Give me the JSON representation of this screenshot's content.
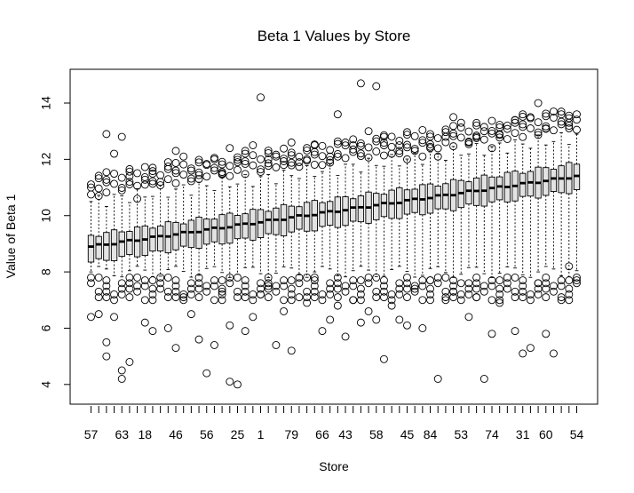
{
  "chart_data": {
    "type": "box",
    "title": "Beta 1 Values by Store",
    "xlabel": "Store",
    "ylabel": "Value of Beta 1",
    "ylim": [
      3.3,
      15.2
    ],
    "yticks": [
      4,
      6,
      8,
      10,
      12,
      14
    ],
    "num_boxes": 64,
    "x_tick_labels_shown": [
      "57",
      "63",
      "18",
      "46",
      "56",
      "25",
      "1",
      "79",
      "66",
      "43",
      "58",
      "45",
      "84",
      "53",
      "74",
      "31",
      "60",
      "54"
    ],
    "median_trend": {
      "start": 8.9,
      "end": 11.4
    },
    "q1_trend": {
      "start": 8.35,
      "end": 10.9
    },
    "q3_trend": {
      "start": 9.3,
      "end": 11.85
    },
    "lower_whisker_typical": 8.0,
    "upper_whisker_typical": {
      "start": 10.5,
      "end": 12.8
    },
    "outliers_high": [
      [
        0,
        11.0
      ],
      [
        1,
        10.7
      ],
      [
        2,
        12.9
      ],
      [
        3,
        12.2
      ],
      [
        4,
        12.8
      ],
      [
        5,
        11.4
      ],
      [
        6,
        10.6
      ],
      [
        7,
        11.1
      ],
      [
        8,
        11.7
      ],
      [
        9,
        11.2
      ],
      [
        10,
        11.9
      ],
      [
        11,
        12.3
      ],
      [
        12,
        12.1
      ],
      [
        13,
        11.6
      ],
      [
        14,
        11.3
      ],
      [
        15,
        11.8
      ],
      [
        16,
        12.0
      ],
      [
        17,
        11.5
      ],
      [
        18,
        12.4
      ],
      [
        19,
        11.9
      ],
      [
        20,
        12.3
      ],
      [
        21,
        12.5
      ],
      [
        22,
        14.2
      ],
      [
        23,
        12.0
      ],
      [
        24,
        12.1
      ],
      [
        25,
        11.8
      ],
      [
        26,
        12.6
      ],
      [
        27,
        11.9
      ],
      [
        28,
        12.0
      ],
      [
        29,
        12.5
      ],
      [
        30,
        11.8
      ],
      [
        31,
        12.1
      ],
      [
        32,
        13.6
      ],
      [
        33,
        12.6
      ],
      [
        34,
        12.5
      ],
      [
        35,
        14.7
      ],
      [
        36,
        13.0
      ],
      [
        37,
        14.6
      ],
      [
        38,
        12.8
      ],
      [
        39,
        12.2
      ],
      [
        40,
        12.5
      ],
      [
        41,
        12.0
      ],
      [
        42,
        12.3
      ],
      [
        43,
        12.1
      ],
      [
        44,
        12.4
      ],
      [
        45,
        12.1
      ],
      [
        46,
        12.8
      ],
      [
        47,
        13.5
      ],
      [
        48,
        13.3
      ],
      [
        49,
        12.6
      ],
      [
        50,
        12.8
      ],
      [
        51,
        13.0
      ],
      [
        52,
        12.4
      ],
      [
        53,
        12.9
      ],
      [
        54,
        13.2
      ],
      [
        55,
        13.4
      ],
      [
        56,
        13.6
      ],
      [
        57,
        13.5
      ],
      [
        58,
        14.0
      ],
      [
        59,
        13.1
      ],
      [
        60,
        13.7
      ],
      [
        61,
        13.6
      ],
      [
        62,
        13.3
      ],
      [
        63,
        13.6
      ]
    ],
    "outliers_low": [
      [
        0,
        6.4
      ],
      [
        1,
        6.5
      ],
      [
        2,
        5.5
      ],
      [
        2,
        5.0
      ],
      [
        3,
        6.4
      ],
      [
        4,
        4.2
      ],
      [
        4,
        4.5
      ],
      [
        5,
        4.8
      ],
      [
        6,
        7.8
      ],
      [
        7,
        6.2
      ],
      [
        8,
        5.9
      ],
      [
        9,
        7.4
      ],
      [
        10,
        6.0
      ],
      [
        11,
        5.3
      ],
      [
        12,
        7.1
      ],
      [
        13,
        6.5
      ],
      [
        14,
        5.6
      ],
      [
        15,
        4.4
      ],
      [
        16,
        5.4
      ],
      [
        17,
        7.3
      ],
      [
        18,
        4.1
      ],
      [
        18,
        6.1
      ],
      [
        19,
        4.0
      ],
      [
        20,
        5.9
      ],
      [
        21,
        6.4
      ],
      [
        22,
        7.2
      ],
      [
        23,
        7.5
      ],
      [
        24,
        5.4
      ],
      [
        25,
        6.6
      ],
      [
        26,
        5.2
      ],
      [
        27,
        7.1
      ],
      [
        28,
        6.9
      ],
      [
        29,
        7.8
      ],
      [
        30,
        5.9
      ],
      [
        31,
        6.3
      ],
      [
        32,
        6.8
      ],
      [
        33,
        5.7
      ],
      [
        34,
        7.0
      ],
      [
        35,
        6.2
      ],
      [
        36,
        6.6
      ],
      [
        37,
        6.3
      ],
      [
        38,
        4.9
      ],
      [
        39,
        6.8
      ],
      [
        40,
        6.3
      ],
      [
        41,
        6.1
      ],
      [
        42,
        7.4
      ],
      [
        43,
        6.0
      ],
      [
        44,
        7.7
      ],
      [
        45,
        4.2
      ],
      [
        46,
        7.0
      ],
      [
        47,
        7.3
      ],
      [
        48,
        7.6
      ],
      [
        49,
        6.4
      ],
      [
        50,
        7.1
      ],
      [
        51,
        4.2
      ],
      [
        52,
        5.8
      ],
      [
        53,
        6.9
      ],
      [
        54,
        7.4
      ],
      [
        55,
        5.9
      ],
      [
        56,
        5.1
      ],
      [
        57,
        5.3
      ],
      [
        58,
        7.6
      ],
      [
        59,
        5.8
      ],
      [
        60,
        5.1
      ],
      [
        61,
        7.1
      ],
      [
        62,
        8.2
      ],
      [
        63,
        7.7
      ]
    ]
  }
}
